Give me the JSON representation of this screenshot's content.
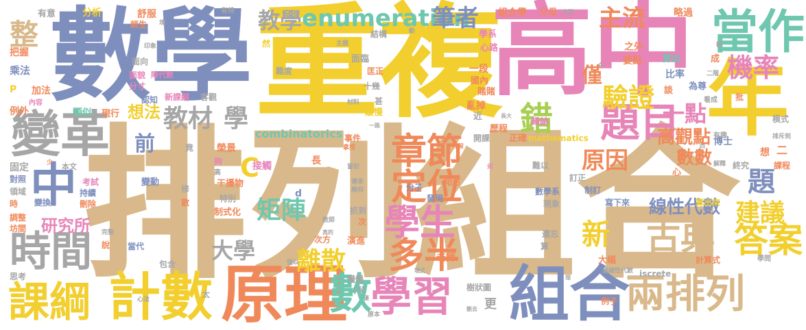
{
  "colors": {
    "yellow": "#f2cf2e",
    "tan": "#d9b98b",
    "slate": "#7f8fbd",
    "pink": "#e785b9",
    "orange": "#f0895a",
    "gray": "#a6a6a6",
    "teal": "#6fc7b0",
    "green": "#a7cf52",
    "background": "#ffffff"
  },
  "words": {
    "w0": "排列組合",
    "w1": "重複",
    "w2": "數學",
    "w3": "高中",
    "w4": "年",
    "w5": "當作",
    "w6": "變革",
    "w7": "原理",
    "w8": "組合",
    "w9": "兩排列",
    "w10": "計數",
    "w11": "課綱",
    "w12": "學習",
    "w13": "時間",
    "w14": "中",
    "w15": "題目",
    "w16": "數",
    "w17": "學生",
    "w18": "多半",
    "w19": "古典",
    "w20": "答案",
    "w21": "定位",
    "w22": "章節",
    "w23": "驗證",
    "w24": "機率",
    "w25": "enumeration",
    "w26": "筆者",
    "w27": "教學",
    "w28": "主流",
    "w29": "整",
    "w30": "建議",
    "w31": "題",
    "w32": "離散",
    "w33": "錯",
    "w34": "一點",
    "w35": "教材",
    "w36": "學",
    "w37": "矩陣",
    "w38": "大學",
    "w39": "新",
    "w40": "原因",
    "w41": "高觀點",
    "w42": "數數",
    "w43": "線性代數",
    "w44": "研究所",
    "w45": "想法",
    "w46": "前",
    "w47": "僅",
    "w48": "C",
    "w49": "combinatorics",
    "w50": "有意",
    "w51": "分析",
    "w52": "舒服",
    "w53": "有待",
    "w54": "組合學",
    "w55": "分母",
    "w56": "定理",
    "w57": "略過",
    "w58": "師生",
    "w59": "塊",
    "w60": "結構",
    "w61": "學系",
    "w62": "動",
    "w63": "把握",
    "w64": "印象",
    "w65": "然",
    "w66": "主題",
    "w67": "心路",
    "w68": "之外",
    "w69": "乘法",
    "w70": "面向",
    "w71": "面臨",
    "w72": "要點",
    "w73": "算出",
    "w74": "比率",
    "w75": "面貌",
    "w76": "陣代數",
    "w77": "難度",
    "w78": "匡正",
    "w79": "一段",
    "w80": "加法",
    "w81": "分寸",
    "w82": "國內",
    "w83": "P",
    "w84": "內容",
    "w85": "認知",
    "w86": "十幾",
    "w87": "賭賭",
    "w88": "談",
    "w89": "為尊",
    "w90": "例外",
    "w91": "類似",
    "w92": "現行",
    "w93": "新課綱",
    "w94": "客觀",
    "w95": "亂掉",
    "w96": "看成",
    "w97": "批",
    "w98": "材料",
    "w99": "甚",
    "w100": "緩慢",
    "w101": "近",
    "w102": "歷程",
    "w103": "歸納",
    "w104": "長大",
    "w105": "模式",
    "w106": "固定",
    "w107": "竟",
    "w108": "榮景",
    "w109": "接觸",
    "w110": "一路",
    "w111": "事件",
    "w112": "開課",
    "w113": "正確",
    "w114": "mathematics",
    "w115": "博士",
    "w116": "有趣",
    "w117": "排斥到",
    "w118": "對照",
    "w119": "本文",
    "w120": "夠",
    "w121": "拿捏",
    "w122": "當初",
    "w123": "長",
    "w124": "停留",
    "w125": "二",
    "w126": "想",
    "w127": "課程",
    "w128": "領域",
    "w129": "考試",
    "w130": "變動",
    "w131": "陌方",
    "w132": "難以",
    "w133": "終究",
    "w134": "解釋",
    "w135": "時",
    "w136": "持續",
    "w137": "干擾物",
    "w138": "傳承",
    "w139": "幾何",
    "w140": "心",
    "w141": "訂正",
    "w142": "變換",
    "w143": "刪除",
    "w144": "修",
    "w145": "特別",
    "w146": "分子",
    "w147": "發現",
    "w148": "數學系",
    "w149": "制訂",
    "w150": "寫下來",
    "w151": "算出來",
    "w152": "調整",
    "w153": "坊間",
    "w154": "散",
    "w155": "制式化",
    "w156": "抓到",
    "w157": "次",
    "w158": "現象",
    "w159": "教師",
    "w160": "完整",
    "w161": "說",
    "w162": "真的",
    "w163": "次方",
    "w164": "演進",
    "w165": "還忘",
    "w166": "算",
    "w167": "當代",
    "w168": "老師",
    "w169": "大幅",
    "w170": "計算式",
    "w171": "學問",
    "w172": "思考",
    "w173": "包含",
    "w174": "復以",
    "w175": "項式",
    "w176": "過線性代數",
    "w177": "iscrete",
    "w178": "樹狀圖",
    "w179": "慢慢",
    "w180": "心法",
    "w181": "太",
    "w182": "更",
    "w183": "原本",
    "w184": "例子",
    "w185": "刪去",
    "w186": "d",
    "w187": "少",
    "w188": "高",
    "w189": "劣",
    "w190": "介紹",
    "w191": "優",
    "w192": "極",
    "w193": "成",
    "w194": "白",
    "w195": "二階",
    "w196": "四",
    "w197": "理"
  }
}
